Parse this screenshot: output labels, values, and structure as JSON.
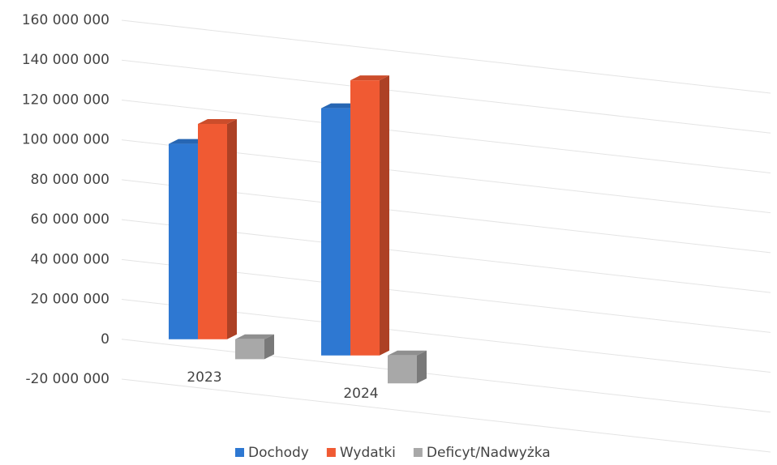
{
  "chart_data": {
    "type": "bar3d",
    "categories": [
      "2023",
      "2024"
    ],
    "series": [
      {
        "name": "Dochody",
        "color": "#2e78d2",
        "values": [
          98000000,
          124000000
        ]
      },
      {
        "name": "Wydatki",
        "color": "#f05a33",
        "values": [
          108000000,
          138000000
        ]
      },
      {
        "name": "Deficyt/Nadwyżka",
        "color": "#a8a8a8",
        "values": [
          -10000000,
          -14000000
        ]
      }
    ],
    "ylim": [
      -20000000,
      160000000
    ],
    "yticks": [
      {
        "value": -20000000,
        "label": "-20 000 000"
      },
      0,
      {
        "value": 20000000,
        "label": "20 000 000"
      },
      {
        "value": 40000000,
        "label": "40 000 000"
      },
      {
        "value": 60000000,
        "label": "60 000 000"
      },
      {
        "value": 80000000,
        "label": "80 000 000"
      },
      {
        "value": 100000000,
        "label": "100 000 000"
      },
      {
        "value": 120000000,
        "label": "120 000 000"
      },
      {
        "value": 140000000,
        "label": "140 000 000"
      },
      {
        "value": 160000000,
        "label": "160 000 000"
      }
    ],
    "grid": true,
    "legend": "bottom"
  }
}
